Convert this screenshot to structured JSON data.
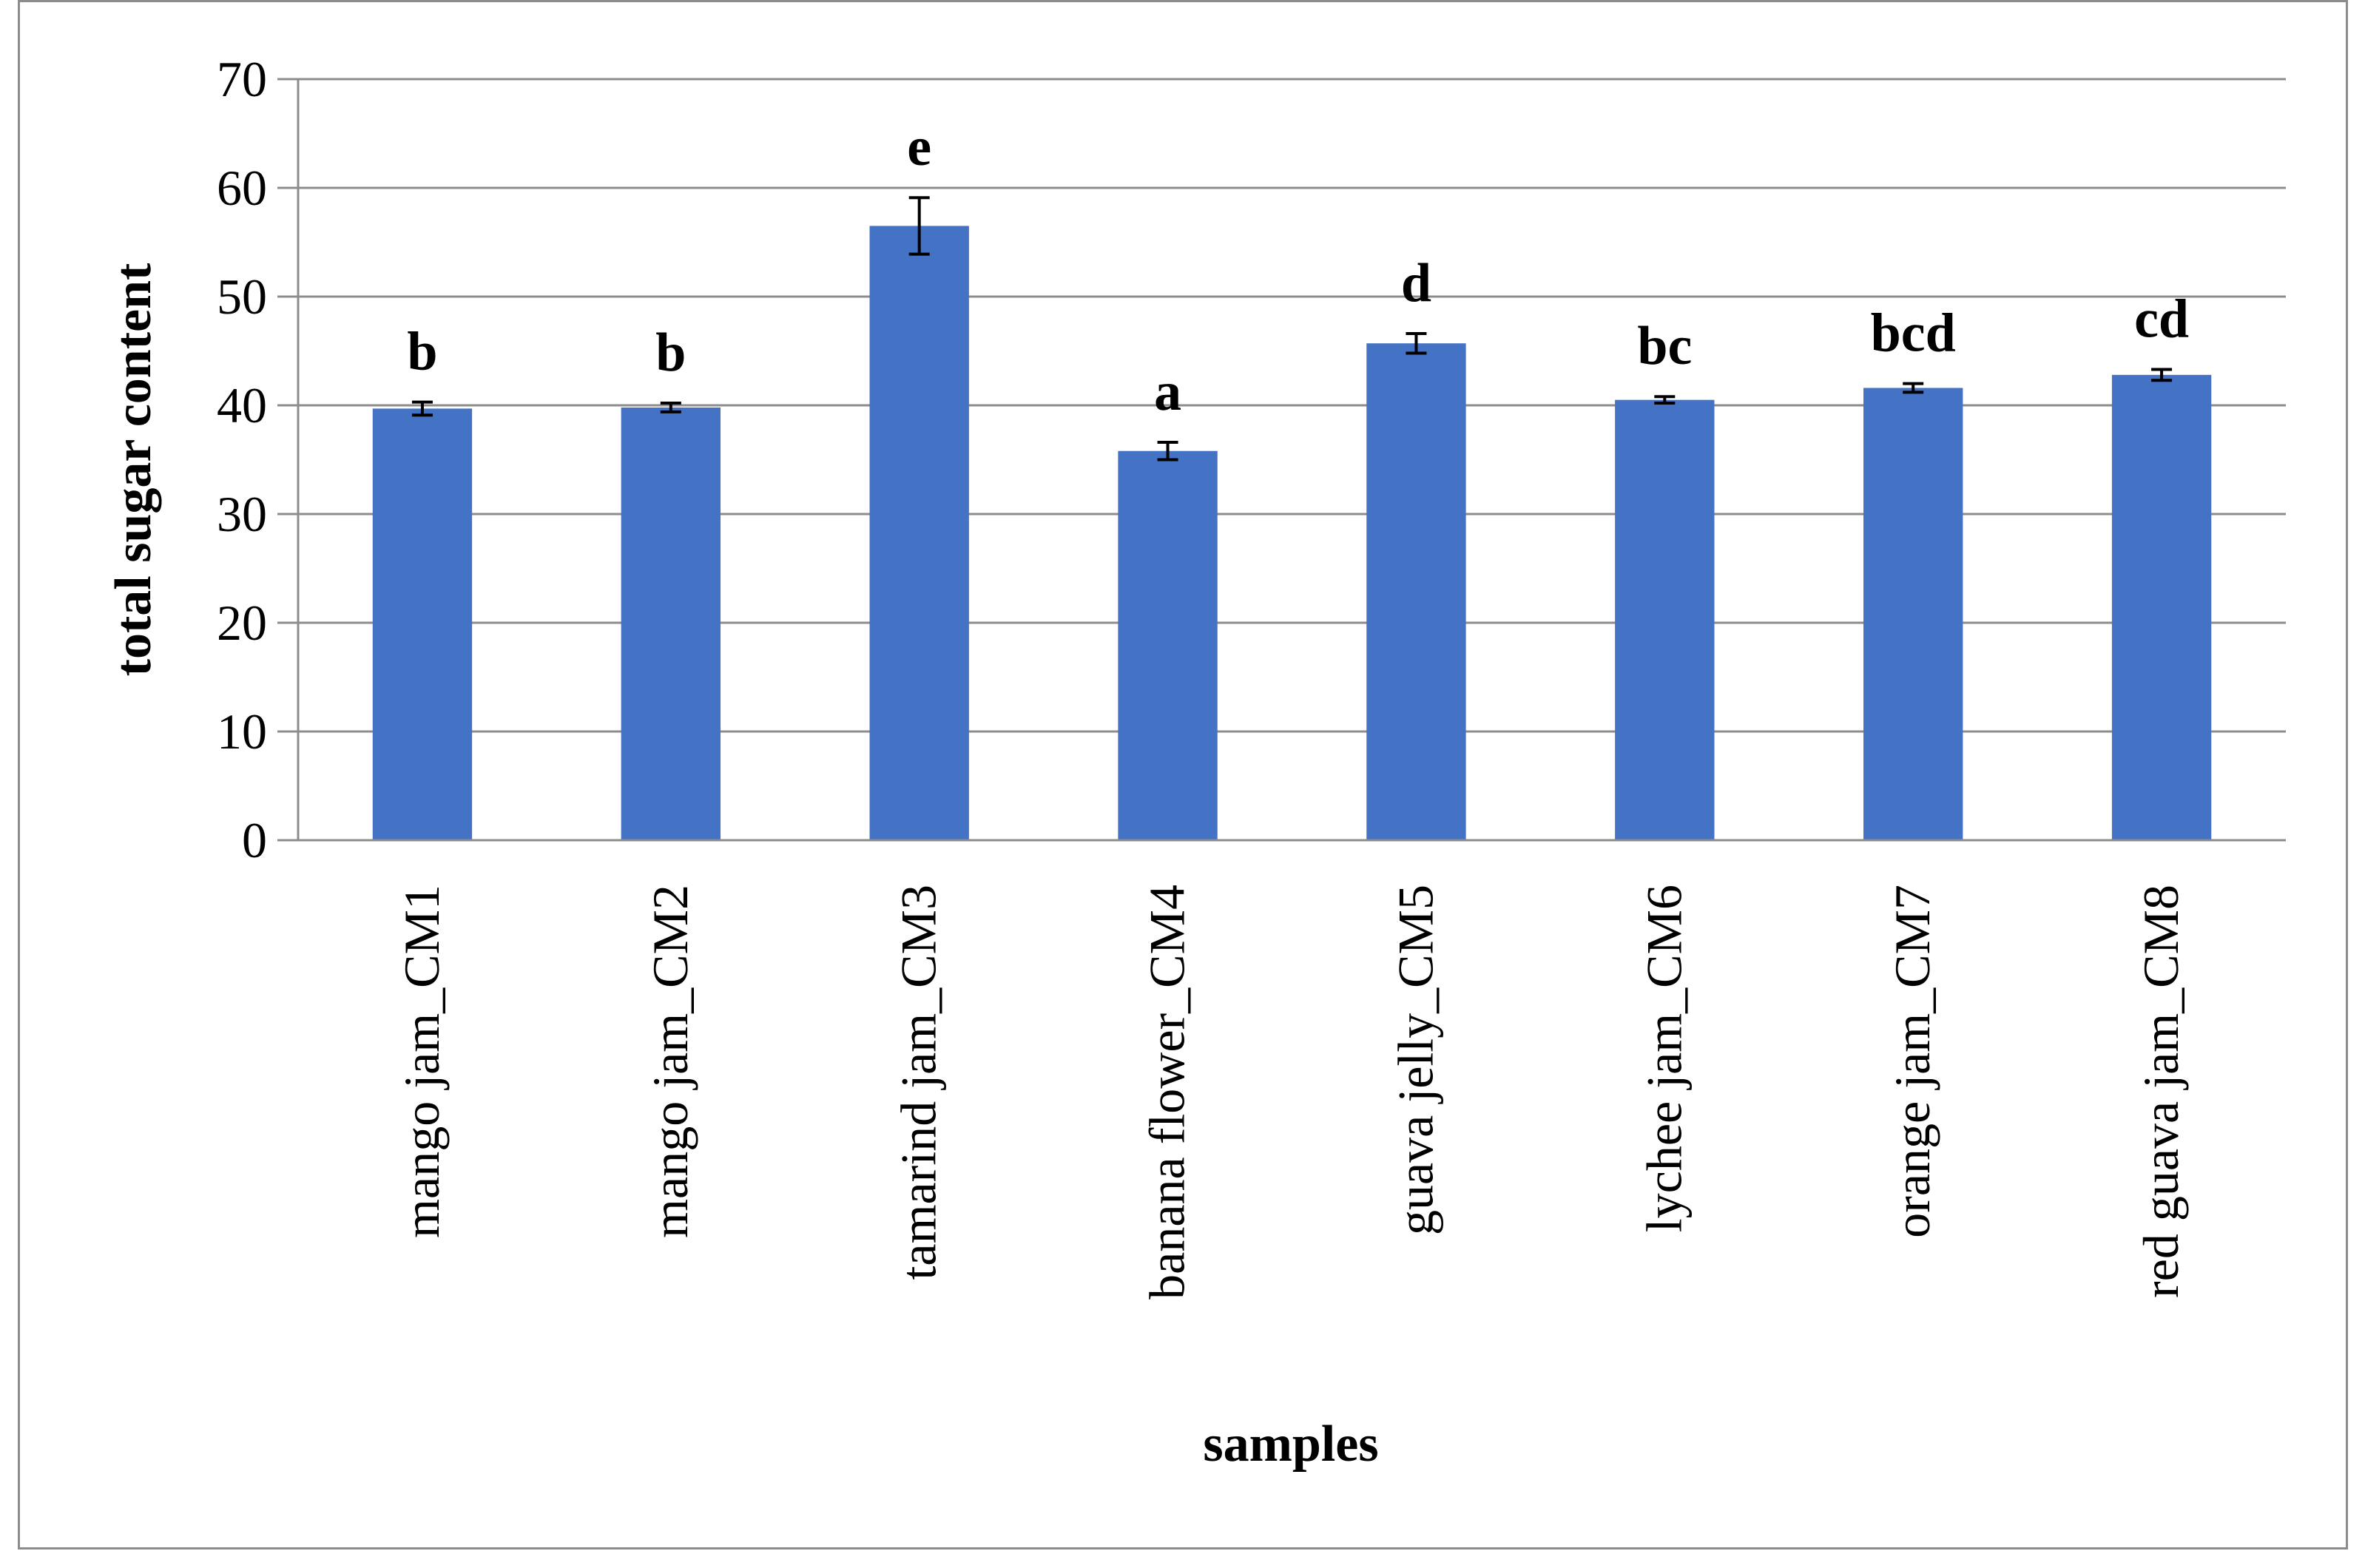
{
  "chart_data": {
    "type": "bar",
    "title": "",
    "xlabel": "samples",
    "ylabel": "total sugar content",
    "ylim": [
      0,
      70
    ],
    "yticks": [
      0,
      10,
      20,
      30,
      40,
      50,
      60,
      70
    ],
    "grid": true,
    "legend": "none",
    "bar_color": "#4472C4",
    "categories": [
      "mango jam_CM1",
      "mango jam_CM2",
      "tamarind jam_CM3",
      "banana flower_CM4",
      "guava jelly_CM5",
      "lychee jam_CM6",
      "orange jam_CM7",
      "red guava jam_CM8"
    ],
    "values": [
      39.7,
      39.8,
      56.5,
      35.8,
      45.7,
      40.5,
      41.6,
      42.8
    ],
    "errors": [
      0.6,
      0.4,
      2.6,
      0.8,
      0.9,
      0.3,
      0.4,
      0.5
    ],
    "annotations": [
      "b",
      "b",
      "e",
      "a",
      "d",
      "bc",
      "bcd",
      "cd"
    ]
  }
}
